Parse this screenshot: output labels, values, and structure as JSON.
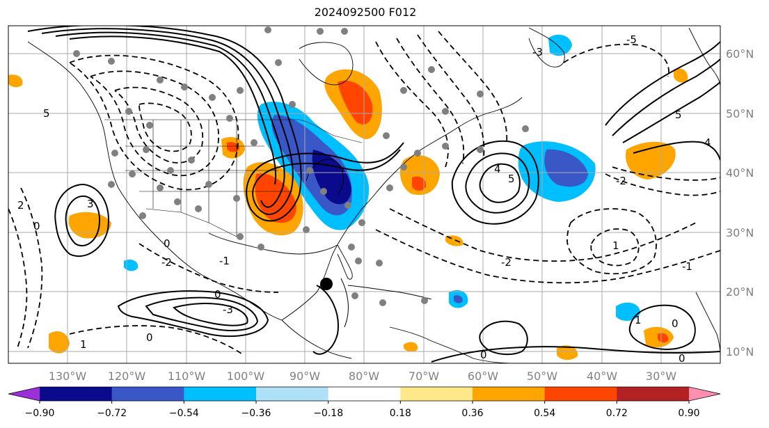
{
  "title": "2024092500 F012",
  "longitude_labels": [
    "130°W",
    "120°W",
    "110°W",
    "100°W",
    "90°W",
    "80°W",
    "70°W",
    "60°W",
    "50°W",
    "40°W",
    "30°W"
  ],
  "latitude_labels": [
    "60°N",
    "50°N",
    "40°N",
    "30°N",
    "20°N",
    "10°N"
  ],
  "colorbar": {
    "tick_labels": [
      "−0.90",
      "−0.72",
      "−0.54",
      "−0.36",
      "−0.18",
      "0.18",
      "0.36",
      "0.54",
      "0.72",
      "0.90"
    ],
    "colors": [
      "#9b30d9",
      "#0a0a8c",
      "#3a57c8",
      "#00bfff",
      "#aee0f7",
      "#ffffff",
      "#ffe88a",
      "#ffa500",
      "#ff4500",
      "#b22222",
      "#ff8fb0"
    ]
  },
  "contour_labels": [
    "3",
    "5",
    "2",
    "0",
    "-3",
    "4",
    "-1",
    "-2",
    "1",
    "-5"
  ],
  "colors": {
    "positive_fill": "#ffa500",
    "strong_positive_fill": "#ff4500",
    "negative_fill": "#00bfff",
    "strong_negative_fill": "#0a0a8c",
    "station_dot": "#808080",
    "storm_center": "#000000"
  }
}
